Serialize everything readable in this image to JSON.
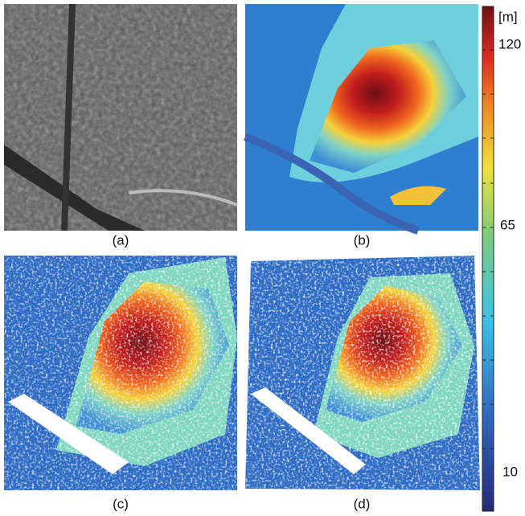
{
  "panels": [
    {
      "label": "(a)"
    },
    {
      "label": "(b)"
    },
    {
      "label": "(c)"
    },
    {
      "label": "(d)"
    }
  ],
  "colorbar": {
    "unit": "[m]",
    "labels": [
      "120",
      "65",
      "10"
    ]
  }
}
